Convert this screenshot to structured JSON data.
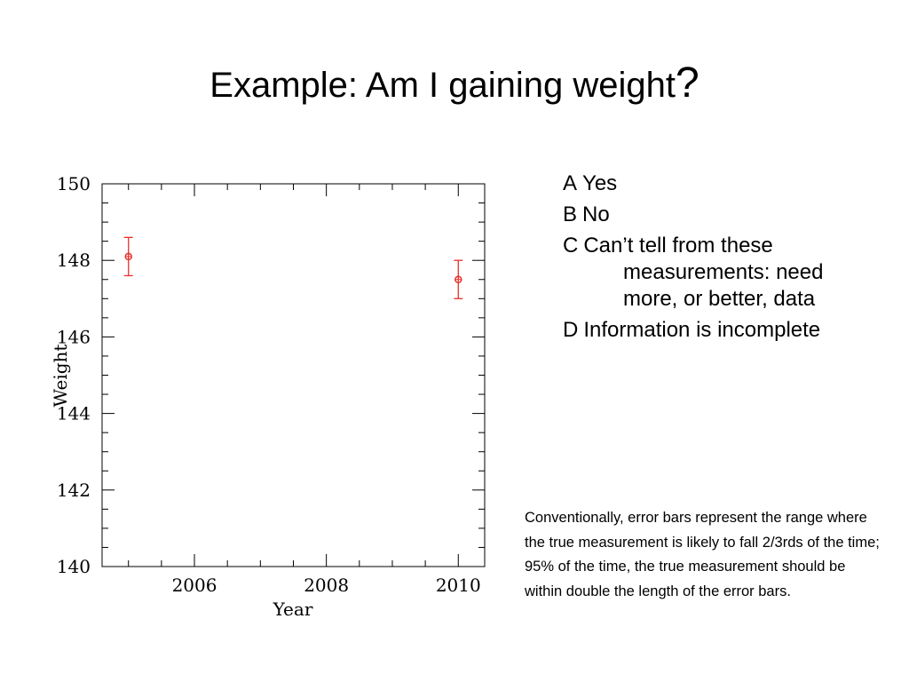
{
  "slide": {
    "title": "Example: Am I gaining weight",
    "title_mark": "?"
  },
  "options": [
    {
      "letter": "A",
      "text": "Yes"
    },
    {
      "letter": "B",
      "text": "No"
    },
    {
      "letter": "C",
      "text": "Can’t tell from these measurements: need more, or better, data"
    },
    {
      "letter": "D",
      "text": "Information is incomplete"
    }
  ],
  "note": "Conventionally, error bars represent the range where the true measurement is likely to fall 2/3rds of the time; 95% of the time, the true measurement should be within double the length of the error bars.",
  "colors": {
    "point": "#e8302c",
    "axis": "#000000"
  },
  "chart_data": {
    "type": "scatter",
    "title": "",
    "xlabel": "Year",
    "ylabel": "Weight",
    "xlim": [
      2004.6,
      2010.4
    ],
    "ylim": [
      140,
      150
    ],
    "x_ticks": [
      2006,
      2008,
      2010
    ],
    "y_ticks": [
      140,
      142,
      144,
      146,
      148,
      150
    ],
    "grid": false,
    "error_bars": true,
    "points": [
      {
        "x": 2005,
        "y": 148.1,
        "err": 0.5
      },
      {
        "x": 2010,
        "y": 147.5,
        "err": 0.5
      }
    ]
  }
}
